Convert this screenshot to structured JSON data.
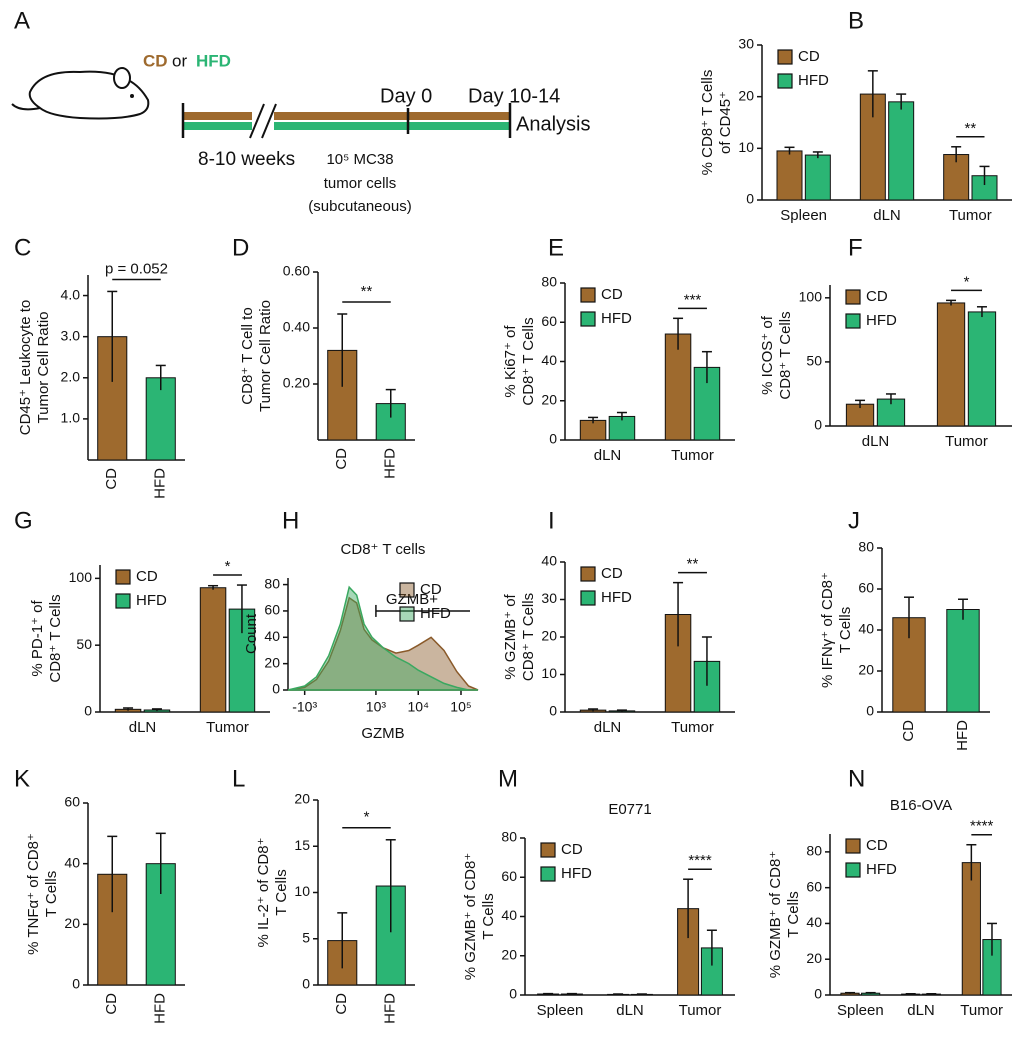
{
  "schematic": {
    "panel": "A",
    "diet_cd": "CD",
    "or": "or",
    "diet_hfd": "HFD",
    "day0": "Day 0",
    "day_end": "Day 10-14",
    "analysis": "Analysis",
    "weeks": "8-10 weeks",
    "cells_line1": "10⁵ MC38",
    "cells_line2": "tumor cells",
    "cells_line3": "(subcutaneous)"
  },
  "chart_data": [
    {
      "type": "bar",
      "panel": "B",
      "ylabel": [
        "% CD8⁺ T Cells",
        "of CD45⁺"
      ],
      "categories": [
        "Spleen",
        "dLN",
        "Tumor"
      ],
      "series": [
        {
          "name": "CD",
          "color": "#9e6a2e",
          "values": [
            9.5,
            20.5,
            8.8
          ],
          "errors": [
            0.7,
            4.5,
            1.5
          ]
        },
        {
          "name": "HFD",
          "color": "#2bb574",
          "values": [
            8.7,
            19,
            4.7
          ],
          "errors": [
            0.6,
            1.5,
            1.8
          ]
        }
      ],
      "ylim": [
        0,
        30
      ],
      "yticks": [
        0,
        10,
        20,
        30
      ],
      "legend": "upper left",
      "annotation": "**"
    },
    {
      "type": "bar",
      "panel": "C",
      "ylabel": [
        "CD45⁺ Leukocyte to",
        "Tumor Cell Ratio"
      ],
      "categories": [
        "CD",
        "HFD"
      ],
      "values": [
        3.0,
        2.0
      ],
      "errors": [
        1.1,
        0.3
      ],
      "colors": [
        "#9e6a2e",
        "#2bb574"
      ],
      "ylim": [
        0,
        4.5
      ],
      "yticks": [
        {
          "value": 1,
          "label": "1.0"
        },
        {
          "value": 2,
          "label": "2.0"
        },
        {
          "value": 3,
          "label": "3.0"
        },
        {
          "value": 4,
          "label": "4.0"
        }
      ],
      "annotation": "p = 0.052"
    },
    {
      "type": "bar",
      "panel": "D",
      "ylabel": [
        "CD8⁺ T Cell to",
        "Tumor Cell Ratio"
      ],
      "categories": [
        "CD",
        "HFD"
      ],
      "values": [
        0.32,
        0.13
      ],
      "errors": [
        0.13,
        0.05
      ],
      "colors": [
        "#9e6a2e",
        "#2bb574"
      ],
      "ylim": [
        0,
        0.6
      ],
      "yticks": [
        {
          "value": 0.2,
          "label": "0.20"
        },
        {
          "value": 0.4,
          "label": "0.40"
        },
        {
          "value": 0.6,
          "label": "0.60"
        }
      ],
      "annotation": "**"
    },
    {
      "type": "bar",
      "panel": "E",
      "ylabel": [
        "% Ki67⁺ of",
        "CD8⁺ T Cells"
      ],
      "categories": [
        "dLN",
        "Tumor"
      ],
      "series": [
        {
          "name": "CD",
          "color": "#9e6a2e",
          "values": [
            10,
            54
          ],
          "errors": [
            1.5,
            8
          ]
        },
        {
          "name": "HFD",
          "color": "#2bb574",
          "values": [
            12,
            37
          ],
          "errors": [
            2,
            8
          ]
        }
      ],
      "ylim": [
        0,
        80
      ],
      "yticks": [
        0,
        20,
        40,
        60,
        80
      ],
      "legend": "upper left",
      "annotation": "***"
    },
    {
      "type": "bar",
      "panel": "F",
      "ylabel": [
        "% ICOS⁺ of",
        "CD8⁺ T Cells"
      ],
      "categories": [
        "dLN",
        "Tumor"
      ],
      "series": [
        {
          "name": "CD",
          "color": "#9e6a2e",
          "values": [
            17,
            96
          ],
          "errors": [
            3,
            2
          ]
        },
        {
          "name": "HFD",
          "color": "#2bb574",
          "values": [
            21,
            89
          ],
          "errors": [
            4,
            4
          ]
        }
      ],
      "ylim": [
        0,
        110
      ],
      "yticks": [
        0,
        50,
        100
      ],
      "legend": "upper left",
      "annotation": "*"
    },
    {
      "type": "bar",
      "panel": "G",
      "ylabel": [
        "% PD-1⁺ of",
        "CD8⁺ T Cells"
      ],
      "categories": [
        "dLN",
        "Tumor"
      ],
      "series": [
        {
          "name": "CD",
          "color": "#9e6a2e",
          "values": [
            2,
            93
          ],
          "errors": [
            1,
            1.5
          ]
        },
        {
          "name": "HFD",
          "color": "#2bb574",
          "values": [
            1.5,
            77
          ],
          "errors": [
            0.8,
            18
          ]
        }
      ],
      "ylim": [
        0,
        110
      ],
      "yticks": [
        0,
        50,
        100
      ],
      "legend": "upper left",
      "annotation": "*"
    },
    {
      "type": "area",
      "panel": "H",
      "title": "CD8⁺ T cells",
      "ylabel": [
        "Count"
      ],
      "xlabel": "GZMB",
      "gate": "GZMB+",
      "x": [
        -2500,
        -1000,
        -500,
        -200,
        0,
        150,
        300,
        500,
        800,
        1500,
        3000,
        6000,
        10000,
        20000,
        40000,
        80000,
        150000,
        250000
      ],
      "series": [
        {
          "name": "CD",
          "color": "#8a5a2a",
          "values": [
            0,
            2,
            8,
            22,
            45,
            70,
            66,
            46,
            38,
            32,
            28,
            30,
            34,
            40,
            30,
            14,
            3,
            0
          ]
        },
        {
          "name": "HFD",
          "color": "#3aa860",
          "values": [
            0,
            3,
            10,
            26,
            50,
            78,
            72,
            50,
            40,
            32,
            25,
            20,
            15,
            10,
            5,
            2,
            0,
            0
          ]
        }
      ],
      "xlim": [
        -2500,
        250000
      ],
      "xticks": [
        {
          "value": -1000,
          "label": "-10³"
        },
        {
          "value": 1000,
          "label": "10³"
        },
        {
          "value": 10000,
          "label": "10⁴"
        },
        {
          "value": 100000,
          "label": "10⁵"
        }
      ],
      "ylim": [
        0,
        85
      ],
      "yticks": [
        0,
        20,
        40,
        60,
        80
      ],
      "legend": "upper right"
    },
    {
      "type": "bar",
      "panel": "I",
      "ylabel": [
        "% GZMB⁺ of",
        "CD8⁺ T Cells"
      ],
      "categories": [
        "dLN",
        "Tumor"
      ],
      "series": [
        {
          "name": "CD",
          "color": "#9e6a2e",
          "values": [
            0.5,
            26
          ],
          "errors": [
            0.3,
            8.5
          ]
        },
        {
          "name": "HFD",
          "color": "#2bb574",
          "values": [
            0.3,
            13.5
          ],
          "errors": [
            0.2,
            6.5
          ]
        }
      ],
      "ylim": [
        0,
        40
      ],
      "yticks": [
        0,
        10,
        20,
        30,
        40
      ],
      "legend": "upper left",
      "annotation": "**"
    },
    {
      "type": "bar",
      "panel": "J",
      "ylabel": [
        "% IFNγ⁺ of CD8⁺",
        "T Cells"
      ],
      "categories": [
        "CD",
        "HFD"
      ],
      "values": [
        46,
        50
      ],
      "errors": [
        10,
        5
      ],
      "colors": [
        "#9e6a2e",
        "#2bb574"
      ],
      "ylim": [
        0,
        80
      ],
      "yticks": [
        0,
        20,
        40,
        60,
        80
      ]
    },
    {
      "type": "bar",
      "panel": "K",
      "ylabel": [
        "% TNFα⁺ of CD8⁺",
        "T Cells"
      ],
      "categories": [
        "CD",
        "HFD"
      ],
      "values": [
        36.5,
        40
      ],
      "errors": [
        12.5,
        10
      ],
      "colors": [
        "#9e6a2e",
        "#2bb574"
      ],
      "ylim": [
        0,
        60
      ],
      "yticks": [
        0,
        20,
        40,
        60
      ]
    },
    {
      "type": "bar",
      "panel": "L",
      "ylabel": [
        "% IL-2⁺ of CD8⁺",
        "T Cells"
      ],
      "categories": [
        "CD",
        "HFD"
      ],
      "values": [
        4.8,
        10.7
      ],
      "errors": [
        3,
        5
      ],
      "colors": [
        "#9e6a2e",
        "#2bb574"
      ],
      "ylim": [
        0,
        20
      ],
      "yticks": [
        0,
        5,
        10,
        15,
        20
      ],
      "annotation": "*"
    },
    {
      "type": "bar",
      "panel": "M",
      "title": "E0771",
      "ylabel": [
        "% GZMB⁺ of CD8⁺",
        "T Cells"
      ],
      "categories": [
        "Spleen",
        "dLN",
        "Tumor"
      ],
      "series": [
        {
          "name": "CD",
          "color": "#9e6a2e",
          "values": [
            0.5,
            0.3,
            44
          ],
          "errors": [
            0.2,
            0.2,
            15
          ]
        },
        {
          "name": "HFD",
          "color": "#2bb574",
          "values": [
            0.5,
            0.3,
            24
          ],
          "errors": [
            0.2,
            0.2,
            9
          ]
        }
      ],
      "ylim": [
        0,
        80
      ],
      "yticks": [
        0,
        20,
        40,
        60,
        80
      ],
      "legend": "upper left",
      "annotation": "****"
    },
    {
      "type": "bar",
      "panel": "N",
      "title": "B16-OVA",
      "ylabel": [
        "% GZMB⁺ of CD8⁺",
        "T Cells"
      ],
      "categories": [
        "Spleen",
        "dLN",
        "Tumor"
      ],
      "series": [
        {
          "name": "CD",
          "color": "#9e6a2e",
          "values": [
            1,
            0.5,
            74
          ],
          "errors": [
            0.3,
            0.2,
            10
          ]
        },
        {
          "name": "HFD",
          "color": "#2bb574",
          "values": [
            1,
            0.5,
            31
          ],
          "errors": [
            0.3,
            0.2,
            9
          ]
        }
      ],
      "ylim": [
        0,
        90
      ],
      "yticks": [
        0,
        20,
        40,
        60,
        80
      ],
      "legend": "upper left",
      "annotation": "****"
    }
  ]
}
